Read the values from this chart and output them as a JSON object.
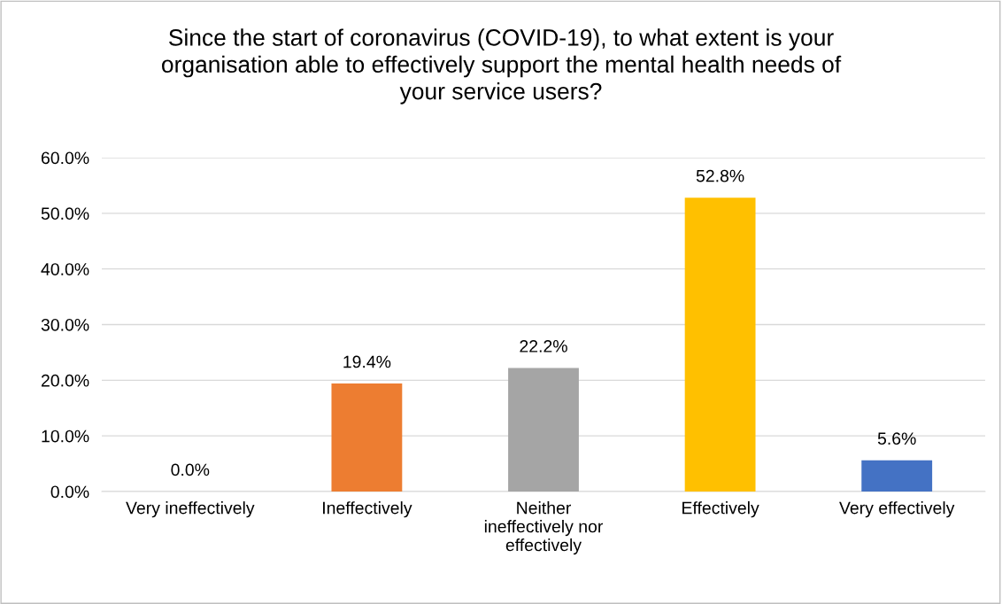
{
  "chart_data": {
    "type": "bar",
    "title": "Since the start of coronavirus (COVID-19), to what extent is your organisation able to effectively support the mental health needs of your service users?",
    "categories": [
      "Very ineffectively",
      "Ineffectively",
      "Neither ineffectively nor effectively",
      "Effectively",
      "Very effectively"
    ],
    "values": [
      0.0,
      19.4,
      22.2,
      52.8,
      5.6
    ],
    "colors": [
      "#5b9bd5",
      "#ed7d31",
      "#a5a5a5",
      "#ffc000",
      "#4472c4"
    ],
    "value_labels": [
      "0.0%",
      "19.4%",
      "22.2%",
      "52.8%",
      "5.6%"
    ],
    "ylim": [
      0,
      60
    ],
    "yticks": [
      {
        "value": 0,
        "label": "0.0%"
      },
      {
        "value": 10,
        "label": "10.0%"
      },
      {
        "value": 20,
        "label": "20.0%"
      },
      {
        "value": 30,
        "label": "30.0%"
      },
      {
        "value": 40,
        "label": "40.0%"
      },
      {
        "value": 50,
        "label": "50.0%"
      },
      {
        "value": 60,
        "label": "60.0%"
      }
    ],
    "grid": "y",
    "legend": false
  }
}
